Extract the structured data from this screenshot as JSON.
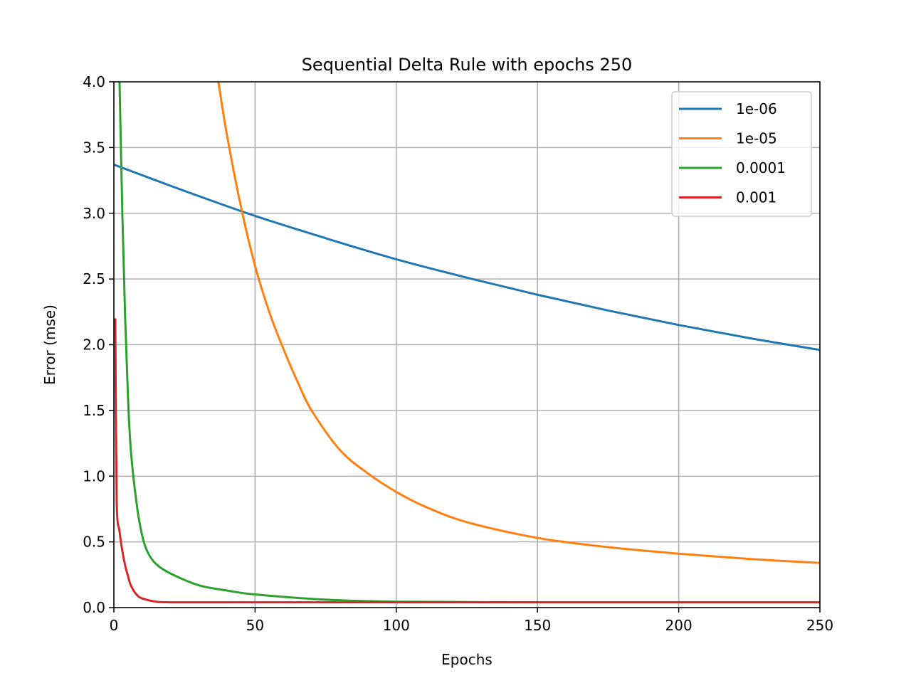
{
  "chart_data": {
    "type": "line",
    "title": "Sequential Delta Rule with epochs 250",
    "xlabel": "Epochs",
    "ylabel": "Error (mse)",
    "xlim": [
      0,
      250
    ],
    "ylim": [
      0,
      4.0
    ],
    "xticks": [
      0,
      50,
      100,
      150,
      200,
      250
    ],
    "xtick_labels": [
      "0",
      "50",
      "100",
      "150",
      "200",
      "250"
    ],
    "yticks": [
      0.0,
      0.5,
      1.0,
      1.5,
      2.0,
      2.5,
      3.0,
      3.5,
      4.0
    ],
    "ytick_labels": [
      "0.0",
      "0.5",
      "1.0",
      "1.5",
      "2.0",
      "2.5",
      "3.0",
      "3.5",
      "4.0"
    ],
    "grid": true,
    "legend_position": "top-right",
    "series": [
      {
        "name": "1e-06",
        "color": "#1f77b4",
        "x": [
          0,
          25,
          50,
          75,
          100,
          125,
          150,
          175,
          200,
          225,
          250
        ],
        "y": [
          3.37,
          3.17,
          2.98,
          2.81,
          2.65,
          2.51,
          2.38,
          2.26,
          2.15,
          2.05,
          1.96
        ]
      },
      {
        "name": "1e-05",
        "color": "#ff7f0e",
        "x": [
          37,
          40,
          45,
          50,
          55,
          60,
          65,
          70,
          80,
          90,
          100,
          110,
          125,
          150,
          175,
          200,
          225,
          250
        ],
        "y": [
          4.0,
          3.6,
          3.05,
          2.6,
          2.25,
          1.97,
          1.72,
          1.5,
          1.2,
          1.02,
          0.88,
          0.77,
          0.65,
          0.53,
          0.46,
          0.41,
          0.37,
          0.34
        ]
      },
      {
        "name": "0.0001",
        "color": "#2ca02c",
        "x": [
          2,
          3,
          4,
          5,
          6,
          8,
          10,
          12,
          15,
          20,
          30,
          40,
          50,
          75,
          100,
          150,
          200,
          250
        ],
        "y": [
          4.0,
          3.0,
          2.2,
          1.6,
          1.2,
          0.8,
          0.55,
          0.42,
          0.33,
          0.26,
          0.17,
          0.13,
          0.1,
          0.06,
          0.045,
          0.04,
          0.04,
          0.04
        ]
      },
      {
        "name": "0.001",
        "color": "#d62728",
        "x": [
          0.5,
          1,
          2,
          3,
          4,
          5,
          6,
          8,
          10,
          15,
          20,
          30,
          50,
          100,
          150,
          200,
          250
        ],
        "y": [
          2.2,
          0.8,
          0.58,
          0.43,
          0.32,
          0.24,
          0.17,
          0.1,
          0.07,
          0.045,
          0.04,
          0.04,
          0.04,
          0.04,
          0.04,
          0.04,
          0.04
        ]
      }
    ]
  }
}
